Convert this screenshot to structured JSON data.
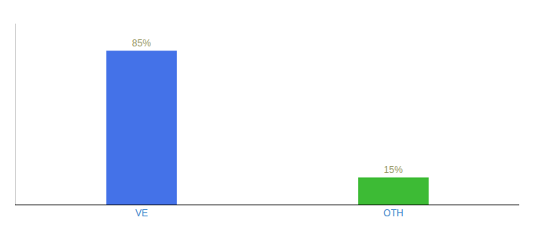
{
  "chart_data": {
    "type": "bar",
    "categories": [
      "VE",
      "OTH"
    ],
    "values": [
      85,
      15
    ],
    "value_labels": [
      "85%",
      "15%"
    ],
    "colors": [
      "#4472e8",
      "#3dbb35"
    ],
    "ylim": [
      0,
      100
    ],
    "yticks": [],
    "grid": false,
    "data_labels": true,
    "tick_labels": "x"
  }
}
